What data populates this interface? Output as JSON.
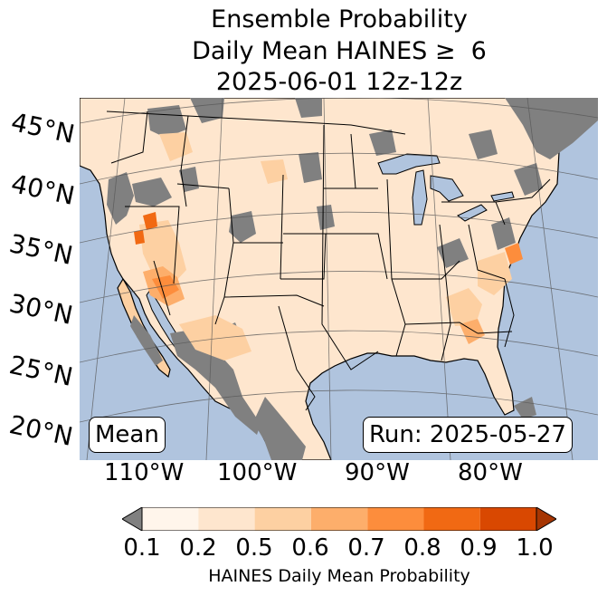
{
  "title": {
    "line1": "Ensemble Probability",
    "line2": "Daily Mean HAINES ≥  6",
    "line3": "2025-06-01 12z-12z"
  },
  "map": {
    "lat_labels": [
      "45°N",
      "40°N",
      "35°N",
      "30°N",
      "25°N",
      "20°N"
    ],
    "lon_labels": [
      "110°W",
      "100°W",
      "90°W",
      "80°W"
    ],
    "stat_label": "Mean",
    "run_label": "Run: 2025-05-27",
    "colors": {
      "ocean": "#b0c4de",
      "no_data": "#808080",
      "borders": "#000000",
      "graticule": "#555555"
    }
  },
  "colorbar": {
    "ticks": [
      "0.1",
      "0.2",
      "0.5",
      "0.6",
      "0.7",
      "0.8",
      "0.9",
      "1.0"
    ],
    "bin_colors": [
      "#fff5eb",
      "#fee6ce",
      "#fdd0a2",
      "#fdae6b",
      "#fd8d3c",
      "#f16913",
      "#d94801"
    ],
    "under_color": "#808080",
    "over_color": "#a63603",
    "label": "HAINES Daily Mean Probability"
  }
}
